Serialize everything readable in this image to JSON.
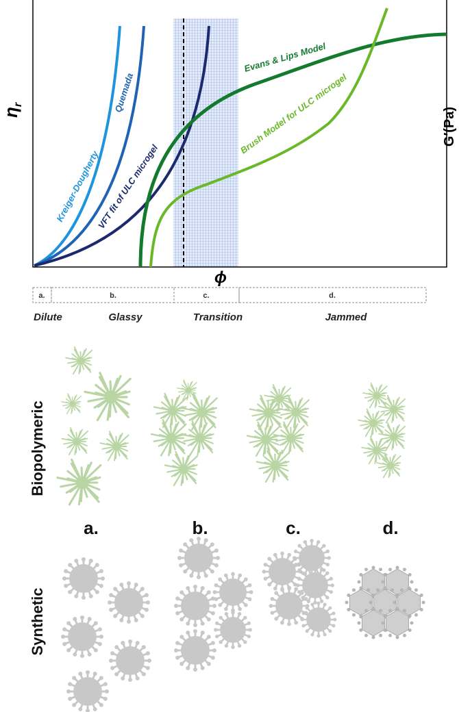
{
  "axes": {
    "y_label": {
      "symbol": "η",
      "subscript": "r"
    },
    "y2_label": "G′(Pa)",
    "x_label": "ϕ"
  },
  "curves": [
    "Kreiger-Dougherty",
    "Quemada",
    "VFT fit of ULC microgel",
    "Evans & Lips Model",
    "Brush Model for ULC microgel"
  ],
  "regimes": [
    {
      "letter": "a.",
      "name": "Dilute"
    },
    {
      "letter": "b.",
      "name": "Glassy"
    },
    {
      "letter": "c.",
      "name": "Transition"
    },
    {
      "letter": "d.",
      "name": "Jammed"
    }
  ],
  "rows": [
    "Biopolymeric",
    "Synthetic"
  ],
  "columns": [
    "a.",
    "b.",
    "c.",
    "d."
  ]
}
